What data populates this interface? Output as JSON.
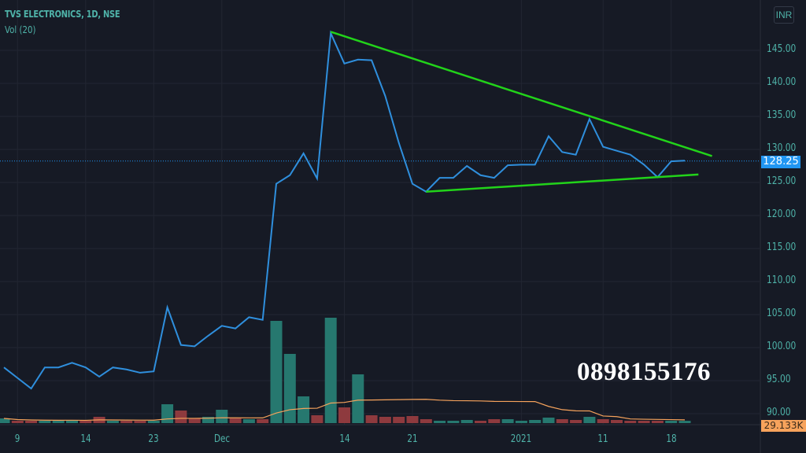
{
  "header": {
    "title": "TVS ELECTRONICS, 1D, NSE",
    "volume_indicator": "Vol (20)",
    "currency": "INR"
  },
  "price_axis": {
    "ticks": [
      "145.00",
      "140.00",
      "135.00",
      "130.00",
      "125.00",
      "120.00",
      "115.00",
      "110.00",
      "105.00",
      "100.00",
      "95.00",
      "90.00"
    ],
    "last_price": "128.25",
    "last_volume": "29.133K"
  },
  "time_axis": {
    "labels": [
      "9",
      "14",
      "23",
      "Dec",
      "14",
      "21",
      "2021",
      "11",
      "18"
    ],
    "label_index": [
      1,
      6,
      11,
      16,
      25,
      30,
      38,
      44,
      49
    ]
  },
  "watermark": "0898155176",
  "colors": {
    "background": "#161a25",
    "price_line": "#2f8fdd",
    "trend_line": "#22d31a",
    "volume_up": "#26786f",
    "volume_down": "#8e3a3e",
    "volume_ma": "#f7a35c",
    "axis_text": "#4fb3a9",
    "last_price_tag": "#2196f3"
  },
  "chart_data": {
    "type": "line",
    "title": "TVS ELECTRONICS, 1D, NSE",
    "ylim": [
      88,
      149
    ],
    "price": [
      97.0,
      95.4,
      93.8,
      97.0,
      97.0,
      97.7,
      97.0,
      95.6,
      97.0,
      96.7,
      96.2,
      96.4,
      106.1,
      100.4,
      100.2,
      101.8,
      103.3,
      102.9,
      104.6,
      104.2,
      124.8,
      126.1,
      129.4,
      125.6,
      147.6,
      143.0,
      143.6,
      143.5,
      138.1,
      131.0,
      124.8,
      123.6,
      125.7,
      125.7,
      127.5,
      126.1,
      125.7,
      127.6,
      127.7,
      127.7,
      132.0,
      129.6,
      129.2,
      134.6,
      130.4,
      129.8,
      129.2,
      127.7,
      125.8,
      128.2,
      128.3
    ],
    "volume_k": [
      60,
      30,
      30,
      30,
      30,
      40,
      30,
      80,
      30,
      30,
      30,
      30,
      240,
      160,
      60,
      80,
      170,
      60,
      50,
      50,
      1300,
      880,
      340,
      100,
      1340,
      200,
      620,
      100,
      80,
      80,
      90,
      50,
      30,
      30,
      40,
      30,
      50,
      50,
      30,
      40,
      70,
      50,
      40,
      80,
      50,
      40,
      30,
      30,
      30,
      30,
      29.133
    ],
    "trendlines": [
      {
        "from_index": 24,
        "from_price": 147.8,
        "to_index": 52,
        "to_price": 129.0
      },
      {
        "from_index": 31,
        "from_price": 123.6,
        "to_index": 51,
        "to_price": 126.2
      }
    ]
  }
}
